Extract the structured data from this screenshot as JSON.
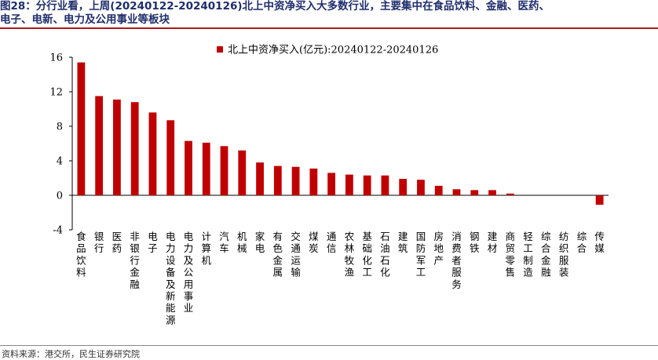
{
  "header": {
    "title_line1": "图28：分行业看，上周(20240122-20240126)北上中资净买入大多数行业，主要集中在食品饮料、金融、医药、",
    "title_line2": "电子、电新、电力及公用事业等板块"
  },
  "footer": {
    "source": "资料来源：港交所，民生证券研究院"
  },
  "colors": {
    "bar": "#c00000",
    "title": "#1f2d6b",
    "rule": "#a61c1c"
  },
  "chart_data": {
    "type": "bar",
    "categories": [
      "食品饮料",
      "银行",
      "医药",
      "非银行金融",
      "电子",
      "电力设备及新能源",
      "电力及公用事业",
      "计算机",
      "汽车",
      "机械",
      "家电",
      "有色金属",
      "交通运输",
      "煤炭",
      "通信",
      "农林牧渔",
      "基础化工",
      "石油石化",
      "建筑",
      "国防军工",
      "房地产",
      "消费者服务",
      "钢铁",
      "建材",
      "商贸零售",
      "轻工制造",
      "综合金融",
      "纺织服装",
      "综合",
      "传媒"
    ],
    "series": [
      {
        "name": "北上中资净买入(亿元):20240122-20240126",
        "values": [
          15.4,
          11.5,
          11.1,
          10.8,
          9.6,
          8.7,
          6.3,
          6.1,
          5.7,
          5.2,
          3.8,
          3.4,
          3.3,
          3.1,
          2.6,
          2.4,
          2.3,
          2.3,
          1.9,
          1.8,
          1.1,
          0.7,
          0.6,
          0.6,
          0.2,
          0.0,
          0.0,
          0.0,
          0.0,
          -1.1
        ]
      }
    ],
    "yticks": [
      "16",
      "12",
      "8",
      "4",
      "0",
      "-4"
    ],
    "ylim": [
      -4,
      16
    ],
    "legend_position": "top",
    "grid": false
  }
}
